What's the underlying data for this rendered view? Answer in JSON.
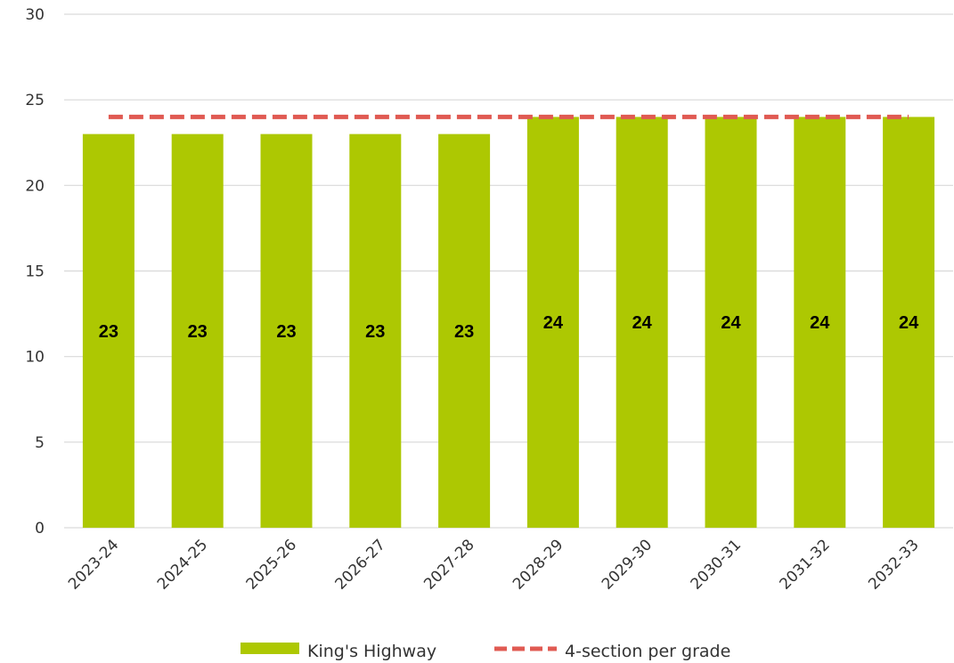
{
  "chart_data": {
    "type": "bar",
    "categories": [
      "2023-24",
      "2024-25",
      "2025-26",
      "2026-27",
      "2027-28",
      "2028-29",
      "2029-30",
      "2030-31",
      "2031-32",
      "2032-33"
    ],
    "series": [
      {
        "name": "King's Highway",
        "type": "bar",
        "color": "#adc802",
        "values": [
          23,
          23,
          23,
          23,
          23,
          24,
          24,
          24,
          24,
          24
        ],
        "data_labels": [
          "23",
          "23",
          "23",
          "23",
          "23",
          "24",
          "24",
          "24",
          "24",
          "24"
        ]
      },
      {
        "name": "4-section per grade",
        "type": "line",
        "style": "dashed",
        "color": "#e05a52",
        "values": [
          24,
          24,
          24,
          24,
          24,
          24,
          24,
          24,
          24,
          24
        ]
      }
    ],
    "y_ticks": [
      "0",
      "5",
      "10",
      "15",
      "20",
      "25",
      "30"
    ],
    "ylim": [
      0,
      30
    ],
    "grid": true,
    "legend_position": "bottom",
    "title": "",
    "xlabel": "",
    "ylabel": "",
    "tick_label_rotation_deg": -45,
    "gridline_color": "#d9d9d9"
  }
}
